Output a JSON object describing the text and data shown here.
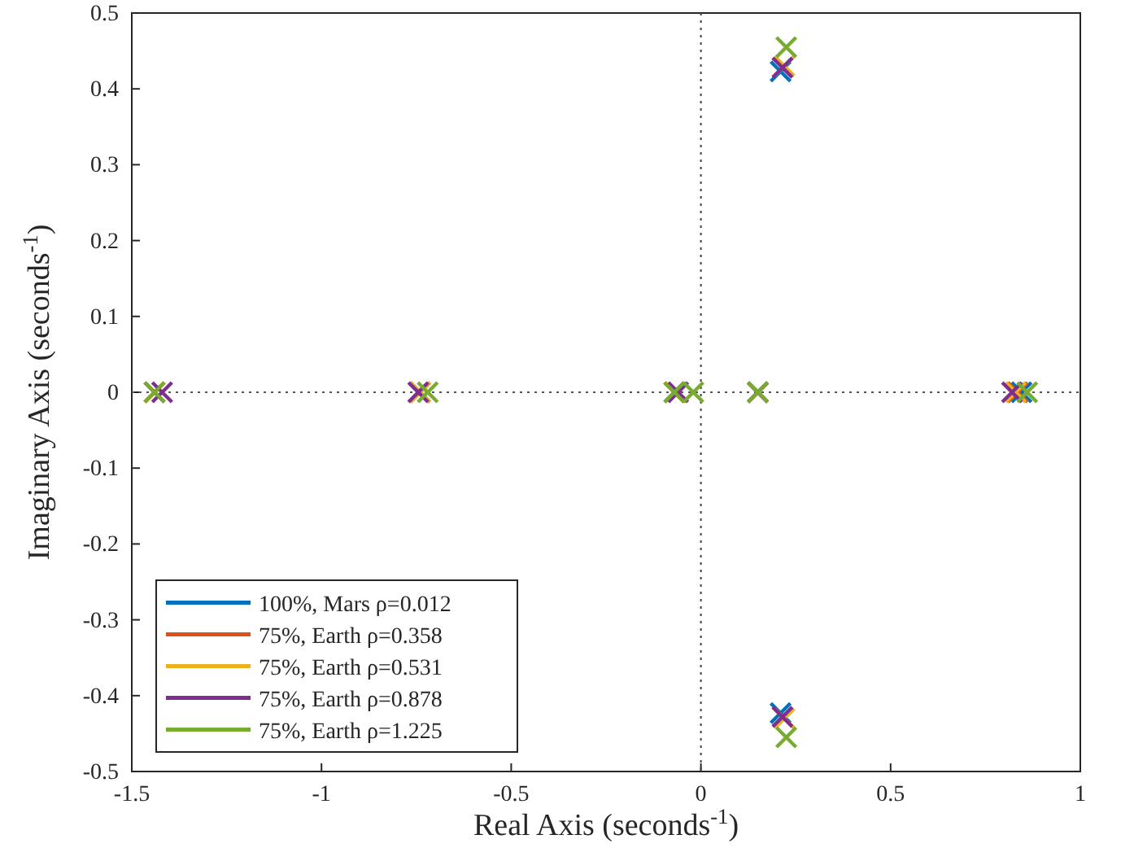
{
  "chart_data": {
    "type": "scatter",
    "xlabel": "Real Axis (seconds$^{-1}$)",
    "ylabel": "Imaginary Axis (seconds$^{-1}$)",
    "xlim": [
      -1.5,
      1
    ],
    "ylim": [
      -0.5,
      0.5
    ],
    "xticks": [
      -1.5,
      -1,
      -0.5,
      0,
      0.5,
      1
    ],
    "yticks": [
      -0.5,
      -0.4,
      -0.3,
      -0.2,
      -0.1,
      0,
      0.1,
      0.2,
      0.3,
      0.4,
      0.5
    ],
    "grid": false,
    "legend": "bottom left",
    "marker": "cross",
    "ref_lines": [
      {
        "axis": "x",
        "value": 0,
        "line_style": "dotted",
        "color": "#404040"
      },
      {
        "axis": "y",
        "value": 0,
        "line_style": "dotted",
        "color": "#555555"
      }
    ],
    "series": [
      {
        "name": "100%, Mars ρ=0.012",
        "color": "#0072bd",
        "x": [
          -1.44,
          -0.74,
          -0.07,
          0.15,
          0.845,
          0.21,
          0.21
        ],
        "values": [
          0,
          0,
          0,
          0,
          0,
          0.423,
          -0.423
        ]
      },
      {
        "name": "75%, Earth ρ=0.358",
        "color": "#d95319",
        "x": [
          -1.44,
          -0.74,
          -0.07,
          0.15,
          0.835
        ],
        "values": [
          0,
          0,
          0,
          0,
          0
        ]
      },
      {
        "name": "75%, Earth ρ=0.531",
        "color": "#edb120",
        "x": [
          -1.44,
          -0.74,
          -0.07,
          0.15,
          0.83,
          0.22,
          0.22
        ],
        "values": [
          0,
          0,
          0,
          0,
          0,
          0.43,
          -0.43
        ]
      },
      {
        "name": "75%, Earth ρ=0.878",
        "color": "#7e2f8e",
        "x": [
          -1.42,
          -0.745,
          -0.06,
          0.15,
          0.82,
          0.215,
          0.215
        ],
        "values": [
          0,
          0,
          0,
          0,
          0,
          0.428,
          -0.428
        ]
      },
      {
        "name": "75%, Earth ρ=1.225",
        "color": "#77ac30",
        "x": [
          -1.44,
          -0.72,
          -0.07,
          -0.02,
          0.15,
          0.86,
          0.225,
          0.225
        ],
        "values": [
          0,
          0,
          0,
          0,
          0,
          0,
          0.455,
          -0.455
        ]
      }
    ]
  }
}
